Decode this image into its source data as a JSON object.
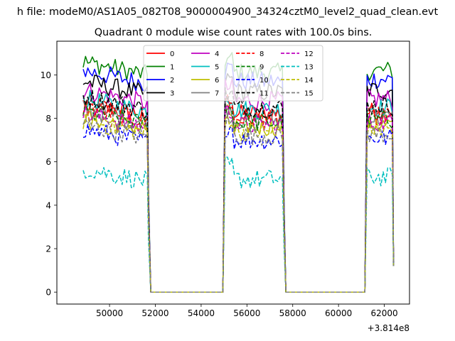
{
  "chart_data": {
    "type": "line",
    "suptitle": "h file: modeM0/AS1A05_082T08_9000004900_34324cztM0_level2_quad_clean.evt",
    "title": "Quadrant 0 module wise count rates with 100.0s bins.",
    "xlabel": "",
    "ylabel": "",
    "x_offset_label": "+3.814e8",
    "xlim": [
      47700,
      63100
    ],
    "ylim": [
      -0.55,
      11.55
    ],
    "xticks": [
      50000,
      52000,
      54000,
      56000,
      58000,
      60000,
      62000
    ],
    "xtick_labels": [
      "50000",
      "52000",
      "54000",
      "56000",
      "58000",
      "60000",
      "62000"
    ],
    "yticks": [
      0,
      2,
      4,
      6,
      8,
      10
    ],
    "ytick_labels": [
      "0",
      "2",
      "4",
      "6",
      "8",
      "10"
    ],
    "segments": [
      {
        "start": 48850,
        "end": 51650,
        "drop_end": 51800
      },
      {
        "start": 55050,
        "end": 57550,
        "rise_start": 54950,
        "drop_end": 57700
      },
      {
        "start": 61250,
        "end": 62400,
        "rise_start": 61150
      }
    ],
    "legend_placement": "upper center",
    "legend_columns": 4,
    "series": [
      {
        "name": "0",
        "color": "#ff0000",
        "dash": "solid",
        "level": 8.4
      },
      {
        "name": "1",
        "color": "#008000",
        "dash": "solid",
        "level": 10.3
      },
      {
        "name": "2",
        "color": "#0000ff",
        "dash": "solid",
        "level": 9.9
      },
      {
        "name": "3",
        "color": "#000000",
        "dash": "solid",
        "level": 9.4
      },
      {
        "name": "4",
        "color": "#bf00bf",
        "dash": "solid",
        "level": 9.0
      },
      {
        "name": "5",
        "color": "#00bfbf",
        "dash": "solid",
        "level": 8.6
      },
      {
        "name": "6",
        "color": "#bfbf00",
        "dash": "solid",
        "level": 7.8
      },
      {
        "name": "7",
        "color": "#808080",
        "dash": "solid",
        "level": 8.1
      },
      {
        "name": "8",
        "color": "#ff0000",
        "dash": "dashed",
        "level": 8.2
      },
      {
        "name": "9",
        "color": "#008000",
        "dash": "dashed",
        "level": 8.0
      },
      {
        "name": "10",
        "color": "#0000ff",
        "dash": "dashed",
        "level": 7.2
      },
      {
        "name": "11",
        "color": "#000000",
        "dash": "dashed",
        "level": 8.7
      },
      {
        "name": "12",
        "color": "#bf00bf",
        "dash": "dashed",
        "level": 7.9
      },
      {
        "name": "13",
        "color": "#00bfbf",
        "dash": "dashed",
        "level": 5.4
      },
      {
        "name": "14",
        "color": "#bfbf00",
        "dash": "dashed",
        "level": 7.6
      },
      {
        "name": "15",
        "color": "#808080",
        "dash": "dashed",
        "level": 7.4
      }
    ]
  }
}
